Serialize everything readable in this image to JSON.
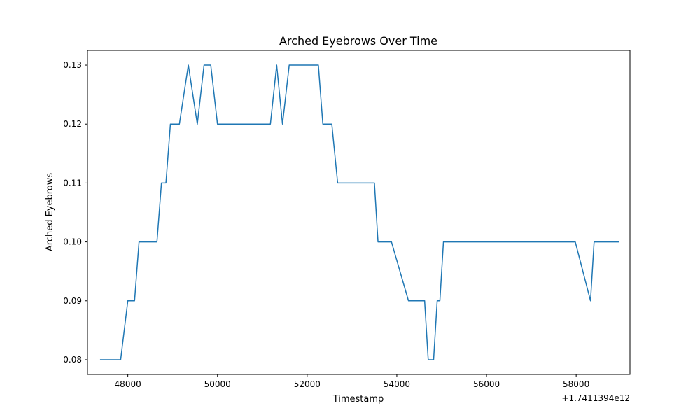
{
  "chart_data": {
    "type": "line",
    "title": "Arched Eyebrows Over Time",
    "xlabel": "Timestamp",
    "ylabel": "Arched Eyebrows",
    "x_offset_label": "+1.7411394e12",
    "xlim": [
      47100,
      59200
    ],
    "ylim": [
      0.0775,
      0.1325
    ],
    "xticks": [
      48000,
      50000,
      52000,
      54000,
      56000,
      58000
    ],
    "xtick_labels": [
      "48000",
      "50000",
      "52000",
      "54000",
      "56000",
      "58000"
    ],
    "yticks": [
      0.08,
      0.09,
      0.1,
      0.11,
      0.12,
      0.13
    ],
    "ytick_labels": [
      "0.08",
      "0.09",
      "0.10",
      "0.11",
      "0.12",
      "0.13"
    ],
    "grid": false,
    "color": "#1f77b4",
    "series": [
      {
        "x": [
          47380,
          47840,
          48000,
          48150,
          48250,
          48650,
          48750,
          48850,
          48950,
          49150,
          49350,
          49550,
          49700,
          49850,
          50000,
          51180,
          51320,
          51450,
          51600,
          52250,
          52350,
          52550,
          52680,
          53500,
          53580,
          53880,
          54260,
          54620,
          54700,
          54820,
          54900,
          54960,
          55040,
          57980,
          58320,
          58400,
          58950
        ],
        "y": [
          0.08,
          0.08,
          0.09,
          0.09,
          0.1,
          0.1,
          0.11,
          0.11,
          0.12,
          0.12,
          0.13,
          0.12,
          0.13,
          0.13,
          0.12,
          0.12,
          0.13,
          0.12,
          0.13,
          0.13,
          0.12,
          0.12,
          0.11,
          0.11,
          0.1,
          0.1,
          0.09,
          0.09,
          0.08,
          0.08,
          0.09,
          0.09,
          0.1,
          0.1,
          0.09,
          0.1,
          0.1
        ]
      }
    ]
  }
}
